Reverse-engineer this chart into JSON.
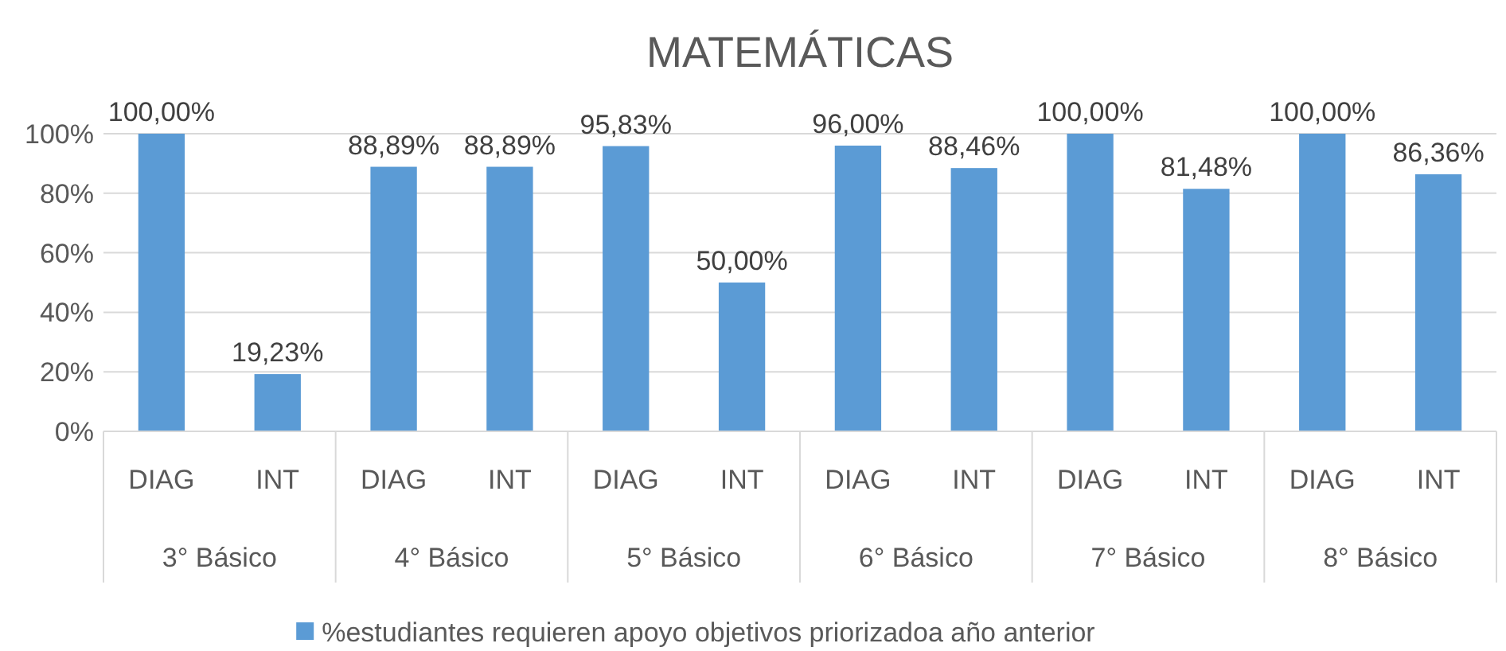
{
  "chart_data": {
    "type": "bar",
    "title": "MATEMÁTICAS",
    "categories": [
      "DIAG",
      "INT",
      "DIAG",
      "INT",
      "DIAG",
      "INT",
      "DIAG",
      "INT",
      "DIAG",
      "INT",
      "DIAG",
      "INT"
    ],
    "series": [
      {
        "name": "%estudiantes requieren apoyo objetivos priorizadoa año anterior",
        "color": "#5b9bd5",
        "values": [
          100,
          19.23,
          88.89,
          88.89,
          95.83,
          50,
          96,
          88.46,
          100,
          81.48,
          100,
          86.36
        ],
        "value_labels": [
          "100,00%",
          "19,23%",
          "88,89%",
          "88,89%",
          "95,83%",
          "50,00%",
          "96,00%",
          "88,46%",
          "100,00%",
          "81,48%",
          "100,00%",
          "86,36%"
        ]
      }
    ],
    "annotations": [
      "3° Básico",
      "4° Básico",
      "5° Básico",
      "6° Básico",
      "7° Básico",
      "8° Básico"
    ],
    "ylim": [
      0,
      100
    ],
    "yticks": [
      {
        "value": 0,
        "label": "0%"
      },
      {
        "value": 20,
        "label": "20%"
      },
      {
        "value": 40,
        "label": "40%"
      },
      {
        "value": 60,
        "label": "60%"
      },
      {
        "value": 80,
        "label": "80%"
      },
      {
        "value": 100,
        "label": "100%"
      }
    ],
    "grid": "y",
    "legend": "bottom"
  }
}
